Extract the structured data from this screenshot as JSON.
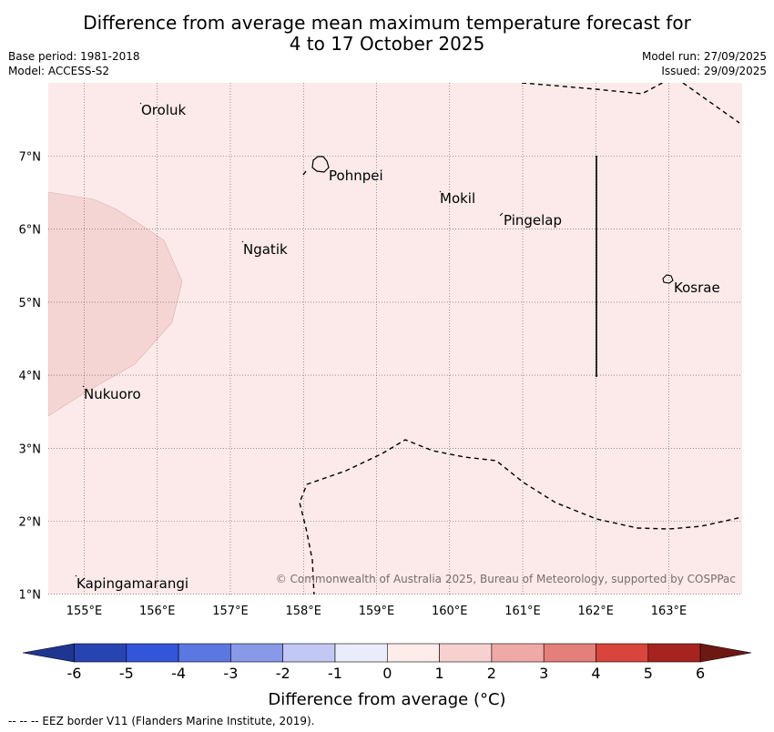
{
  "title_line1": "Difference from average mean maximum temperature forecast for",
  "title_line2": "4 to 17 October 2025",
  "base_period": "Base period: 1981-2018",
  "model": "Model: ACCESS-S2",
  "model_run": "Model run: 27/09/2025",
  "issued": "Issued: 29/09/2025",
  "copyright": "© Commonwealth of Australia 2025, Bureau of Meteorology, supported by COSPPac",
  "lon_labels": [
    "155°E",
    "156°E",
    "157°E",
    "158°E",
    "159°E",
    "160°E",
    "161°E",
    "162°E",
    "163°E"
  ],
  "lat_labels": [
    "7°N",
    "6°N",
    "5°N",
    "4°N",
    "3°N",
    "2°N",
    "1°N"
  ],
  "places": [
    {
      "name": "Oroluk"
    },
    {
      "name": "Pohnpei"
    },
    {
      "name": "Mokil"
    },
    {
      "name": "Pingelap"
    },
    {
      "name": "Ngatik"
    },
    {
      "name": "Kosrae"
    },
    {
      "name": "Nukuoro"
    },
    {
      "name": "Kapingamarangi"
    }
  ],
  "colorbar": {
    "ticks": [
      "-6",
      "-5",
      "-4",
      "-3",
      "-2",
      "-1",
      "0",
      "1",
      "2",
      "3",
      "4",
      "5",
      "6"
    ],
    "colors": [
      "#1f3690",
      "#2844b3",
      "#3355d9",
      "#5c78e0",
      "#8899e8",
      "#c2c8f3",
      "#ebecfb",
      "#fdecea",
      "#f6d1d0",
      "#efaaa8",
      "#e57f79",
      "#d9453c",
      "#a7231f",
      "#6e1814"
    ],
    "label": "Difference from average (°C)"
  },
  "map_colors": {
    "background": "#fbeae9",
    "anomaly_1_2": "#f5d5d4"
  },
  "footer": "--  --  -- EEZ border V11 (Flanders Marine Institute, 2019)."
}
